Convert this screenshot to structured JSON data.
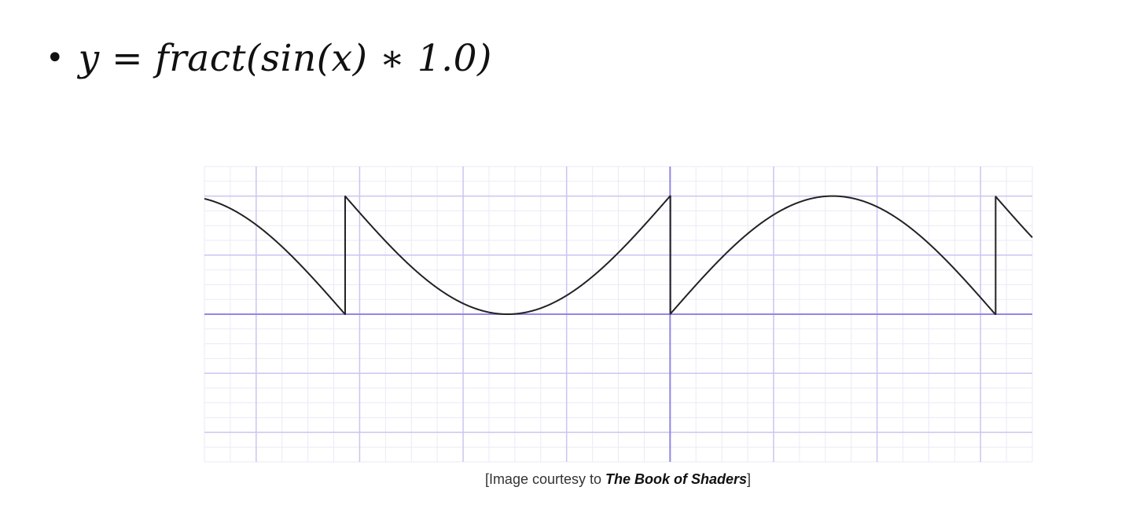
{
  "slide": {
    "bullet": "•",
    "formula": "y = fract(sin(x) ∗ 1.0)"
  },
  "caption": {
    "prefix": "[Image courtesy to ",
    "book": "The Book of Shaders",
    "suffix": "]"
  },
  "chart_data": {
    "type": "line",
    "title": "",
    "xlabel": "",
    "ylabel": "",
    "function": "y = fract(sin(x) * 1.0)",
    "xlim": [
      -4.5,
      3.5
    ],
    "ylim": [
      -1.25,
      1.25
    ],
    "grid": true,
    "legend": "none",
    "line_color": "#222222",
    "grid_major_color": "#c9c6f2",
    "grid_minor_color": "#ebeaf7",
    "axis_color": "#8f88e6",
    "series": [
      {
        "values_desc": "fract of sine sampled densely",
        "x": [
          -4.5,
          -4.2,
          -3.9,
          -3.6,
          -3.3,
          -3.14159,
          -3.0,
          -2.7,
          -2.4,
          -2.1,
          -1.8,
          -1.5708,
          -1.3,
          -1.0,
          -0.7,
          -0.4,
          -0.1,
          0.0,
          0.3,
          0.6,
          0.9,
          1.2,
          1.5708,
          1.8,
          2.1,
          2.4,
          2.7,
          3.0,
          3.14159,
          3.3,
          3.5
        ],
        "y": [
          0.9775,
          0.8716,
          0.6878,
          0.4425,
          0.1577,
          0.0,
          0.8589,
          0.5726,
          0.3245,
          0.1368,
          0.0262,
          0.0,
          0.0364,
          0.1585,
          0.3558,
          0.6106,
          0.9002,
          0.0,
          0.2955,
          0.5646,
          0.7833,
          0.932,
          1.0,
          0.9738,
          0.8632,
          0.6755,
          0.4274,
          0.1411,
          0.0,
          0.8423,
          0.6492
        ]
      }
    ]
  }
}
